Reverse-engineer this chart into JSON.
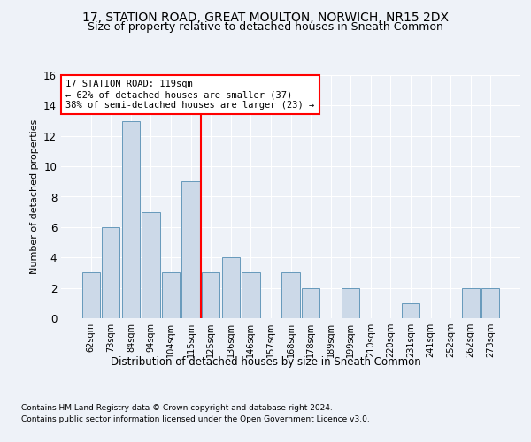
{
  "title1": "17, STATION ROAD, GREAT MOULTON, NORWICH, NR15 2DX",
  "title2": "Size of property relative to detached houses in Sneath Common",
  "xlabel": "Distribution of detached houses by size in Sneath Common",
  "ylabel": "Number of detached properties",
  "categories": [
    "62sqm",
    "73sqm",
    "84sqm",
    "94sqm",
    "104sqm",
    "115sqm",
    "125sqm",
    "136sqm",
    "146sqm",
    "157sqm",
    "168sqm",
    "178sqm",
    "189sqm",
    "199sqm",
    "210sqm",
    "220sqm",
    "231sqm",
    "241sqm",
    "252sqm",
    "262sqm",
    "273sqm"
  ],
  "values": [
    3,
    6,
    13,
    7,
    3,
    9,
    3,
    4,
    3,
    0,
    3,
    2,
    0,
    2,
    0,
    0,
    1,
    0,
    0,
    2,
    2
  ],
  "bar_color": "#ccd9e8",
  "bar_edge_color": "#6699bb",
  "ref_line_index": 6,
  "ref_line_color": "red",
  "annotation_text": "17 STATION ROAD: 119sqm\n← 62% of detached houses are smaller (37)\n38% of semi-detached houses are larger (23) →",
  "annotation_box_color": "red",
  "annotation_fontsize": 7.5,
  "ylim": [
    0,
    16
  ],
  "yticks": [
    0,
    2,
    4,
    6,
    8,
    10,
    12,
    14,
    16
  ],
  "footnote1": "Contains HM Land Registry data © Crown copyright and database right 2024.",
  "footnote2": "Contains public sector information licensed under the Open Government Licence v3.0.",
  "background_color": "#eef2f8",
  "plot_bg_color": "#eef2f8",
  "title1_fontsize": 10,
  "title2_fontsize": 9
}
